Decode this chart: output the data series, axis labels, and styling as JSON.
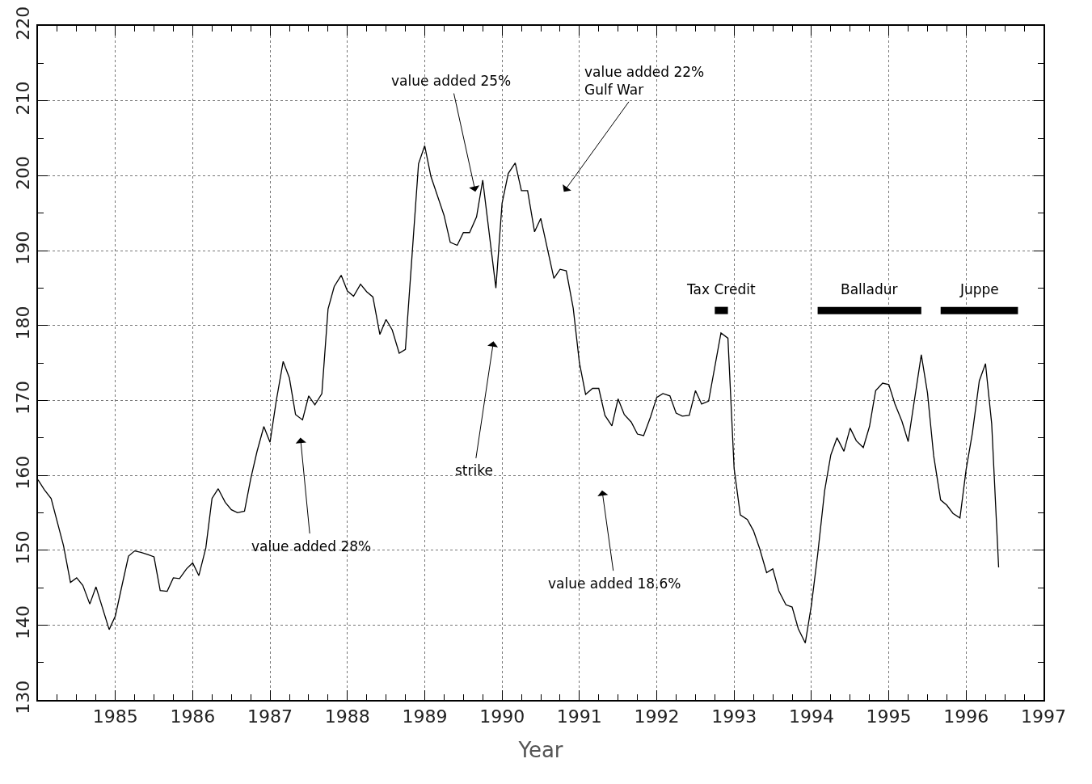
{
  "chart_data": {
    "type": "line",
    "xlabel": "Year",
    "xlim": [
      1984,
      1997
    ],
    "ylim": [
      130,
      220
    ],
    "xticks": [
      {
        "value": 1984.25,
        "label": null
      },
      {
        "value": 1984.5,
        "label": null
      },
      {
        "value": 1984.75,
        "label": null
      },
      1985,
      {
        "value": 1985.25,
        "label": null
      },
      {
        "value": 1985.5,
        "label": null
      },
      {
        "value": 1985.75,
        "label": null
      },
      1986,
      {
        "value": 1986.25,
        "label": null
      },
      {
        "value": 1986.5,
        "label": null
      },
      {
        "value": 1986.75,
        "label": null
      },
      1987,
      {
        "value": 1987.25,
        "label": null
      },
      {
        "value": 1987.5,
        "label": null
      },
      {
        "value": 1987.75,
        "label": null
      },
      1988,
      {
        "value": 1988.25,
        "label": null
      },
      {
        "value": 1988.5,
        "label": null
      },
      {
        "value": 1988.75,
        "label": null
      },
      1989,
      {
        "value": 1989.25,
        "label": null
      },
      {
        "value": 1989.5,
        "label": null
      },
      {
        "value": 1989.75,
        "label": null
      },
      1990,
      {
        "value": 1990.25,
        "label": null
      },
      {
        "value": 1990.5,
        "label": null
      },
      {
        "value": 1990.75,
        "label": null
      },
      1991,
      {
        "value": 1991.25,
        "label": null
      },
      {
        "value": 1991.5,
        "label": null
      },
      {
        "value": 1991.75,
        "label": null
      },
      1992,
      {
        "value": 1992.25,
        "label": null
      },
      {
        "value": 1992.5,
        "label": null
      },
      {
        "value": 1992.75,
        "label": null
      },
      1993,
      {
        "value": 1993.25,
        "label": null
      },
      {
        "value": 1993.5,
        "label": null
      },
      {
        "value": 1993.75,
        "label": null
      },
      1994,
      {
        "value": 1994.25,
        "label": null
      },
      {
        "value": 1994.5,
        "label": null
      },
      {
        "value": 1994.75,
        "label": null
      },
      1995,
      {
        "value": 1995.25,
        "label": null
      },
      {
        "value": 1995.5,
        "label": null
      },
      {
        "value": 1995.75,
        "label": null
      },
      1996,
      {
        "value": 1996.25,
        "label": null
      },
      {
        "value": 1996.5,
        "label": null
      },
      {
        "value": 1996.75,
        "label": null
      },
      1997
    ],
    "yticks": [
      130,
      {
        "value": 135,
        "label": null
      },
      140,
      {
        "value": 145,
        "label": null
      },
      150,
      {
        "value": 155,
        "label": null
      },
      160,
      {
        "value": 165,
        "label": null
      },
      170,
      {
        "value": 175,
        "label": null
      },
      180,
      {
        "value": 185,
        "label": null
      },
      190,
      {
        "value": 195,
        "label": null
      },
      200,
      {
        "value": 205,
        "label": null
      },
      210,
      {
        "value": 215,
        "label": null
      },
      220
    ],
    "grid": true,
    "series": [
      {
        "color": "#000000",
        "x": [
          1984.0,
          1984.08,
          1984.17,
          1984.33,
          1984.42,
          1984.5,
          1984.58,
          1984.67,
          1984.75,
          1984.92,
          1985.0,
          1985.08,
          1985.17,
          1985.25,
          1985.33,
          1985.42,
          1985.5,
          1985.58,
          1985.67,
          1985.75,
          1985.83,
          1985.92,
          1986.0,
          1986.08,
          1986.17,
          1986.25,
          1986.33,
          1986.42,
          1986.5,
          1986.58,
          1986.67,
          1986.75,
          1986.83,
          1986.92,
          1987.0,
          1987.08,
          1987.17,
          1987.25,
          1987.33,
          1987.42,
          1987.5,
          1987.58,
          1987.67,
          1987.75,
          1987.83,
          1987.92,
          1988.0,
          1988.08,
          1988.17,
          1988.25,
          1988.33,
          1988.42,
          1988.5,
          1988.58,
          1988.67,
          1988.75,
          1988.92,
          1989.0,
          1989.08,
          1989.25,
          1989.33,
          1989.42,
          1989.5,
          1989.58,
          1989.67,
          1989.75,
          1989.92,
          1990.0,
          1990.08,
          1990.17,
          1990.25,
          1990.33,
          1990.42,
          1990.5,
          1990.67,
          1990.75,
          1990.83,
          1990.92,
          1991.0,
          1991.08,
          1991.17,
          1991.25,
          1991.33,
          1991.42,
          1991.5,
          1991.58,
          1991.67,
          1991.75,
          1991.83,
          1991.92,
          1992.0,
          1992.08,
          1992.17,
          1992.25,
          1992.33,
          1992.42,
          1992.5,
          1992.58,
          1992.67,
          1992.83,
          1992.92,
          1993.0,
          1993.08,
          1993.17,
          1993.25,
          1993.33,
          1993.42,
          1993.5,
          1993.58,
          1993.67,
          1993.75,
          1993.83,
          1993.92,
          1994.0,
          1994.08,
          1994.17,
          1994.25,
          1994.33,
          1994.42,
          1994.5,
          1994.58,
          1994.67,
          1994.75,
          1994.83,
          1994.92,
          1995.0,
          1995.08,
          1995.17,
          1995.25,
          1995.42,
          1995.5,
          1995.58,
          1995.67,
          1995.75,
          1995.83,
          1995.92,
          1996.0,
          1996.08,
          1996.17,
          1996.25,
          1996.33,
          1996.42
        ],
        "values": [
          159.4,
          158.1,
          156.9,
          150.6,
          145.7,
          146.3,
          145.3,
          142.8,
          145.1,
          139.4,
          141.2,
          145.0,
          149.2,
          149.9,
          149.7,
          149.4,
          149.1,
          144.6,
          144.5,
          146.3,
          146.2,
          147.5,
          148.3,
          146.6,
          150.3,
          156.9,
          158.2,
          156.4,
          155.4,
          155.0,
          155.2,
          159.5,
          163.1,
          166.5,
          164.4,
          169.9,
          175.2,
          173.0,
          168.1,
          167.4,
          170.6,
          169.4,
          170.9,
          182.2,
          185.2,
          186.7,
          184.6,
          183.9,
          185.5,
          184.5,
          183.8,
          178.8,
          180.8,
          179.4,
          176.3,
          176.8,
          201.6,
          204.0,
          199.9,
          194.7,
          191.1,
          190.7,
          192.4,
          192.4,
          194.5,
          199.4,
          185.0,
          196.3,
          200.3,
          201.7,
          198.0,
          198.0,
          192.5,
          194.3,
          186.3,
          187.5,
          187.3,
          182.3,
          175.0,
          170.8,
          171.6,
          171.6,
          168.0,
          166.6,
          170.2,
          168.1,
          167.1,
          165.5,
          165.3,
          167.8,
          170.4,
          170.9,
          170.6,
          168.3,
          167.9,
          168.0,
          171.3,
          169.5,
          169.9,
          179.0,
          178.3,
          160.9,
          154.7,
          154.1,
          152.6,
          150.2,
          147.0,
          147.5,
          144.5,
          142.7,
          142.4,
          139.5,
          137.6,
          142.7,
          149.4,
          157.9,
          162.7,
          165.0,
          163.2,
          166.3,
          164.6,
          163.7,
          166.5,
          171.3,
          172.3,
          172.1,
          169.5,
          167.2,
          164.5,
          176.1,
          171.0,
          162.6,
          156.7,
          156.0,
          154.9,
          154.3,
          160.8,
          165.6,
          172.6,
          174.9,
          166.9,
          147.7
        ]
      },
      {
        "name": "Tax Credit",
        "color": "#000000",
        "x": [
          1992.75,
          1992.92
        ],
        "values": [
          182,
          182
        ]
      },
      {
        "name": "Balladur",
        "color": "#000000",
        "x": [
          1994.08,
          1995.42
        ],
        "values": [
          182,
          182
        ]
      },
      {
        "name": "Juppe",
        "color": "#000000",
        "x": [
          1995.67,
          1996.67
        ],
        "values": [
          182,
          182
        ]
      }
    ],
    "annotations": [
      "value added 28%",
      "value added 25%",
      "value added 22%\nGulf War",
      "strike",
      "value added 18.6%"
    ],
    "legend": false
  }
}
